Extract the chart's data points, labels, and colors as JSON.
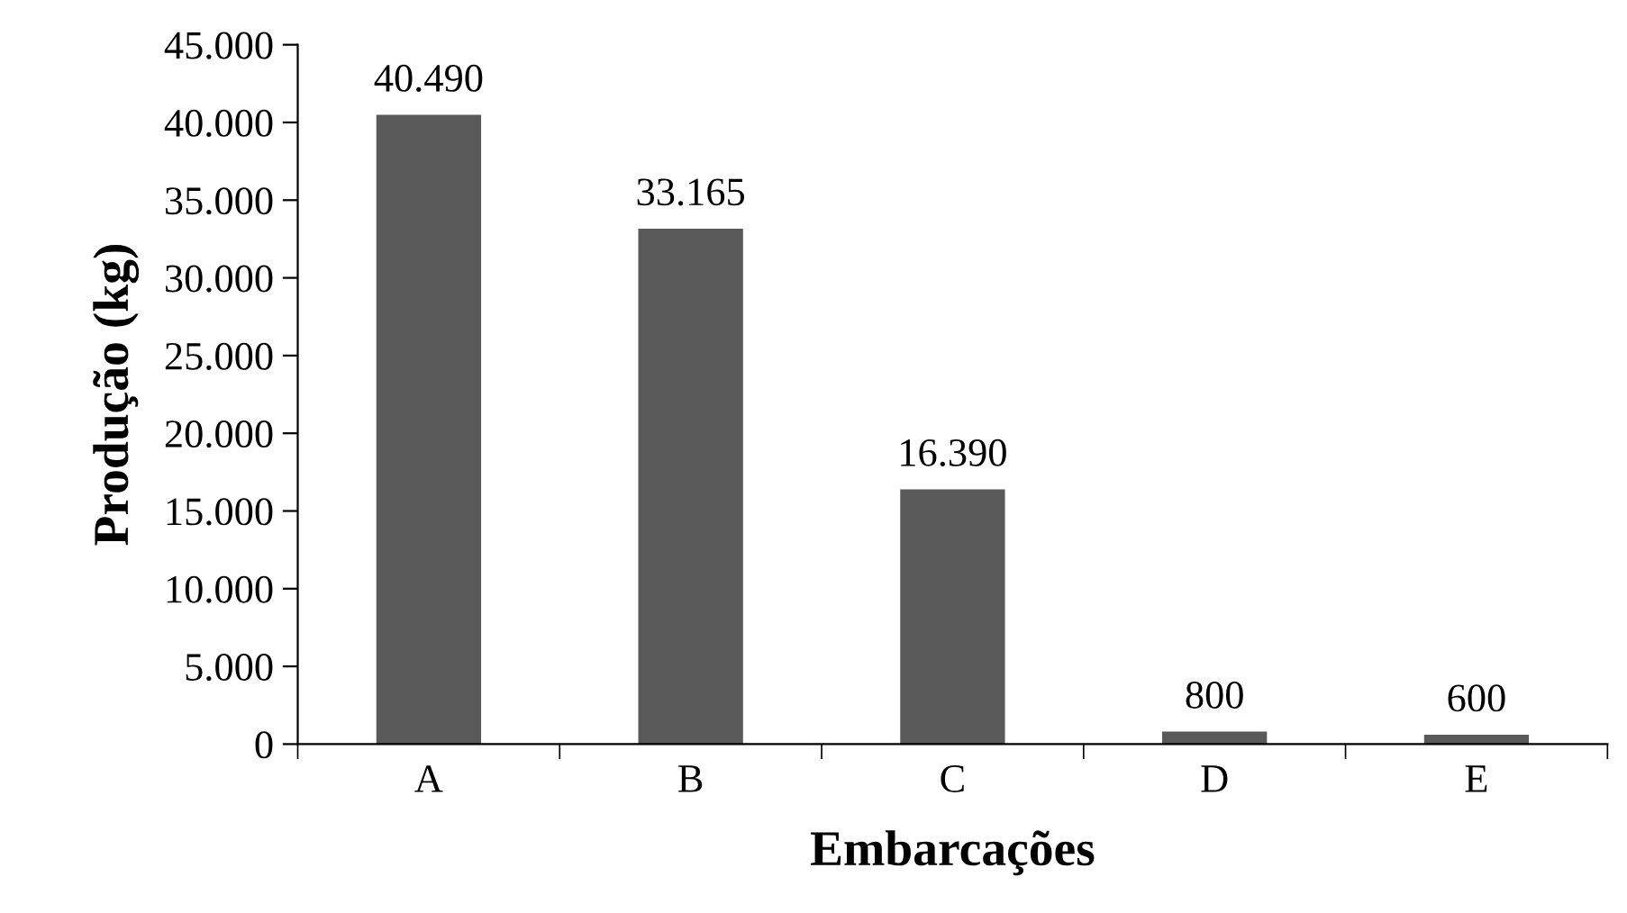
{
  "chart_data": {
    "type": "bar",
    "xlabel": "Embarcações",
    "ylabel": "Produção (kg)",
    "categories": [
      "A",
      "B",
      "C",
      "D",
      "E"
    ],
    "values": [
      40490,
      33165,
      16390,
      800,
      600
    ],
    "value_labels": [
      "40.490",
      "33.165",
      "16.390",
      "800",
      "600"
    ],
    "color": "#595959",
    "ylim": [
      0,
      45000
    ],
    "yticks": [
      0,
      {
        "value": 5000,
        "label": "5.000"
      },
      {
        "value": 10000,
        "label": "10.000"
      },
      {
        "value": 15000,
        "label": "15.000"
      },
      {
        "value": 20000,
        "label": "20.000"
      },
      {
        "value": 25000,
        "label": "25.000"
      },
      {
        "value": 30000,
        "label": "30.000"
      },
      {
        "value": 35000,
        "label": "35.000"
      },
      {
        "value": 40000,
        "label": "40.000"
      },
      {
        "value": 45000,
        "label": "45.000"
      }
    ],
    "grid": false,
    "legend": false
  }
}
